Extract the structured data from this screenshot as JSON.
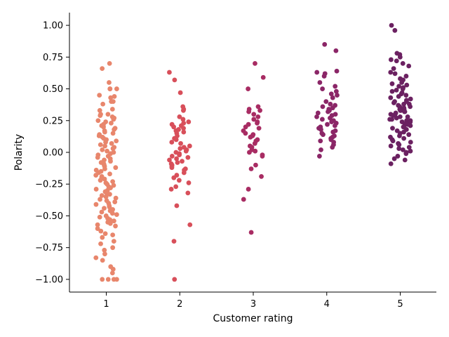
{
  "chart_data": {
    "type": "scatter",
    "subtype": "strip",
    "title": "",
    "xlabel": "Customer rating",
    "ylabel": "Polarity",
    "categories": [
      "1",
      "2",
      "3",
      "4",
      "5"
    ],
    "ylim": [
      -1.1,
      1.1
    ],
    "yticks": [
      -1.0,
      -0.75,
      -0.5,
      -0.25,
      0.0,
      0.25,
      0.5,
      0.75,
      1.0
    ],
    "ytick_labels": [
      "−1.00",
      "−0.75",
      "−0.50",
      "−0.25",
      "0.00",
      "0.25",
      "0.50",
      "0.75",
      "1.00"
    ],
    "grid": false,
    "legend": "none",
    "colors": [
      "#e8866c",
      "#d84f5a",
      "#a82c63",
      "#8b2667",
      "#6b2161"
    ],
    "series": [
      {
        "category": "1",
        "values": [
          0.7,
          0.66,
          0.55,
          0.5,
          0.5,
          0.5,
          0.45,
          0.44,
          0.43,
          0.4,
          0.4,
          0.38,
          0.34,
          0.33,
          0.3,
          0.3,
          0.29,
          0.28,
          0.27,
          0.26,
          0.25,
          0.24,
          0.23,
          0.22,
          0.21,
          0.2,
          0.19,
          0.18,
          0.17,
          0.16,
          0.15,
          0.14,
          0.13,
          0.12,
          0.11,
          0.1,
          0.09,
          0.08,
          0.07,
          0.06,
          0.05,
          0.04,
          0.03,
          0.02,
          0.01,
          0.0,
          -0.01,
          -0.02,
          -0.03,
          -0.04,
          -0.05,
          -0.06,
          -0.07,
          -0.08,
          -0.09,
          -0.1,
          -0.11,
          -0.12,
          -0.13,
          -0.14,
          -0.15,
          -0.16,
          -0.17,
          -0.18,
          -0.19,
          -0.2,
          -0.21,
          -0.22,
          -0.23,
          -0.24,
          -0.25,
          -0.26,
          -0.27,
          -0.28,
          -0.29,
          -0.3,
          -0.31,
          -0.32,
          -0.33,
          -0.34,
          -0.35,
          -0.36,
          -0.37,
          -0.38,
          -0.39,
          -0.4,
          -0.41,
          -0.42,
          -0.43,
          -0.44,
          -0.45,
          -0.46,
          -0.47,
          -0.48,
          -0.49,
          -0.5,
          -0.51,
          -0.52,
          -0.53,
          -0.54,
          -0.55,
          -0.56,
          -0.57,
          -0.58,
          -0.6,
          -0.62,
          -0.64,
          -0.65,
          -0.67,
          -0.7,
          -0.72,
          -0.75,
          -0.77,
          -0.8,
          -0.83,
          -0.85,
          -0.9,
          -0.92,
          -0.95,
          -1.0,
          -1.0,
          -1.0,
          -1.0
        ]
      },
      {
        "category": "2",
        "values": [
          0.63,
          0.57,
          0.47,
          0.36,
          0.34,
          0.33,
          0.28,
          0.26,
          0.24,
          0.23,
          0.22,
          0.21,
          0.2,
          0.19,
          0.18,
          0.17,
          0.16,
          0.15,
          0.13,
          0.11,
          0.1,
          0.08,
          0.07,
          0.05,
          0.04,
          0.03,
          0.02,
          0.01,
          0.0,
          -0.01,
          -0.02,
          -0.03,
          -0.04,
          -0.05,
          -0.06,
          -0.07,
          -0.08,
          -0.09,
          -0.1,
          -0.11,
          -0.12,
          -0.13,
          -0.14,
          -0.16,
          -0.18,
          -0.2,
          -0.22,
          -0.24,
          -0.27,
          -0.29,
          -0.32,
          -0.42,
          -0.57,
          -0.7,
          -1.0
        ]
      },
      {
        "category": "3",
        "values": [
          0.7,
          0.59,
          0.5,
          0.36,
          0.34,
          0.33,
          0.32,
          0.3,
          0.28,
          0.26,
          0.24,
          0.23,
          0.22,
          0.2,
          0.19,
          0.17,
          0.15,
          0.14,
          0.13,
          0.12,
          0.1,
          0.09,
          0.07,
          0.05,
          0.04,
          0.02,
          0.01,
          0.0,
          -0.02,
          -0.03,
          -0.1,
          -0.13,
          -0.19,
          -0.29,
          -0.37,
          -0.63
        ]
      },
      {
        "category": "4",
        "values": [
          0.85,
          0.8,
          0.64,
          0.63,
          0.62,
          0.6,
          0.55,
          0.52,
          0.5,
          0.48,
          0.46,
          0.45,
          0.43,
          0.4,
          0.38,
          0.37,
          0.36,
          0.35,
          0.34,
          0.33,
          0.32,
          0.31,
          0.3,
          0.29,
          0.28,
          0.27,
          0.26,
          0.25,
          0.24,
          0.23,
          0.22,
          0.21,
          0.2,
          0.19,
          0.18,
          0.17,
          0.16,
          0.15,
          0.14,
          0.13,
          0.12,
          0.11,
          0.1,
          0.09,
          0.08,
          0.06,
          0.04,
          0.02,
          -0.03
        ]
      },
      {
        "category": "5",
        "values": [
          1.0,
          0.96,
          0.78,
          0.77,
          0.75,
          0.73,
          0.72,
          0.7,
          0.68,
          0.66,
          0.63,
          0.62,
          0.6,
          0.58,
          0.57,
          0.55,
          0.54,
          0.53,
          0.52,
          0.51,
          0.5,
          0.49,
          0.48,
          0.47,
          0.46,
          0.45,
          0.44,
          0.43,
          0.42,
          0.41,
          0.4,
          0.4,
          0.39,
          0.38,
          0.38,
          0.37,
          0.36,
          0.36,
          0.35,
          0.34,
          0.34,
          0.33,
          0.33,
          0.32,
          0.32,
          0.31,
          0.3,
          0.3,
          0.29,
          0.28,
          0.28,
          0.27,
          0.26,
          0.26,
          0.25,
          0.25,
          0.24,
          0.24,
          0.23,
          0.22,
          0.22,
          0.21,
          0.2,
          0.2,
          0.19,
          0.18,
          0.17,
          0.16,
          0.15,
          0.14,
          0.13,
          0.12,
          0.11,
          0.1,
          0.09,
          0.08,
          0.07,
          0.06,
          0.05,
          0.04,
          0.03,
          0.02,
          0.01,
          0.0,
          -0.01,
          -0.03,
          -0.05,
          -0.06,
          -0.09
        ]
      }
    ]
  }
}
